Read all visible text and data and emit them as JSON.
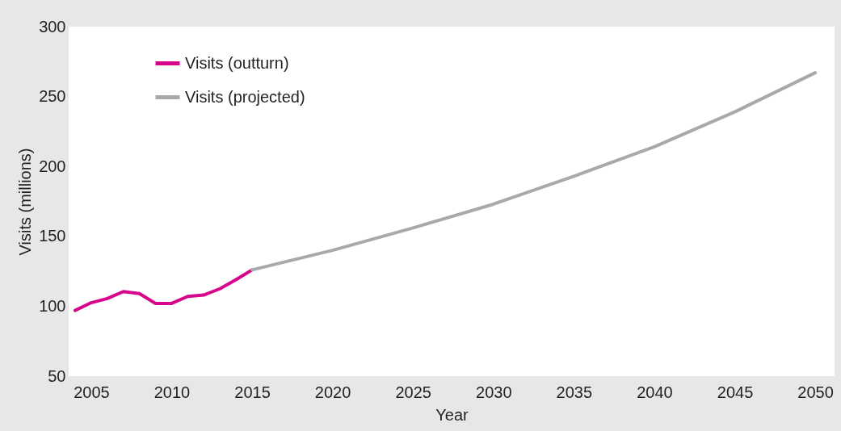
{
  "chart_data": {
    "type": "line",
    "xlabel": "Year",
    "ylabel": "Visits (millions)",
    "xlim": [
      2003.6,
      2051.2
    ],
    "xticks": [
      2005,
      2010,
      2015,
      2020,
      2025,
      2030,
      2035,
      2040,
      2045,
      2050
    ],
    "ylim": [
      50,
      300
    ],
    "yticks": [
      50,
      100,
      150,
      200,
      250,
      300
    ],
    "grid": false,
    "legend": "top left",
    "marker": "none",
    "line_style": "solid",
    "series": [
      {
        "name": "Visits (outturn)",
        "color": "#d6058c",
        "x": [
          2004,
          2005,
          2006,
          2007,
          2008,
          2009,
          2010,
          2011,
          2012,
          2013,
          2014,
          2015
        ],
        "values": [
          97,
          102.5,
          105.5,
          110.5,
          109,
          102,
          102,
          107,
          108,
          112.5,
          119,
          126
        ]
      },
      {
        "name": "Visits (projected)",
        "color": "#a7a9ac",
        "x": [
          2015,
          2020,
          2025,
          2030,
          2035,
          2040,
          2045,
          2050
        ],
        "values": [
          126,
          140,
          156,
          173,
          193,
          214,
          239,
          267
        ]
      }
    ]
  }
}
